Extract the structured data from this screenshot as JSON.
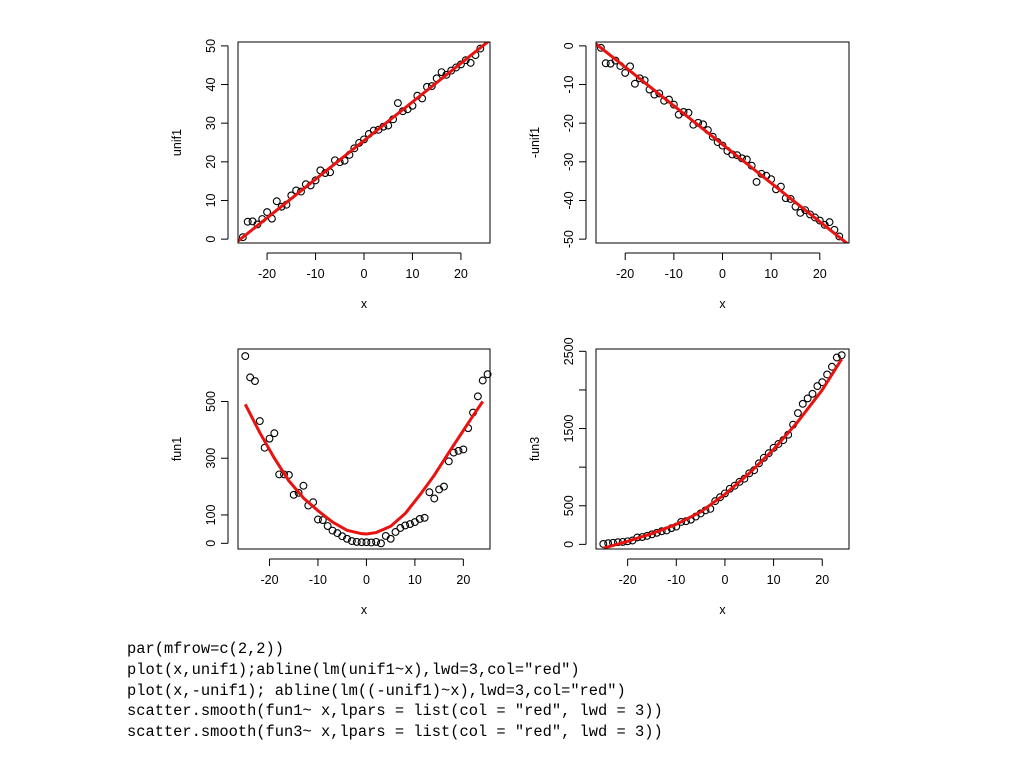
{
  "colors": {
    "points": "#000000",
    "fit_line": "#e8130f",
    "axes": "#000000"
  },
  "chart_data": [
    {
      "type": "scatter",
      "xlabel": "x",
      "ylabel": "unif1",
      "xlim": [
        -26,
        26
      ],
      "ylim": [
        -1,
        51
      ],
      "xticks": [
        -20,
        -10,
        0,
        10,
        20
      ],
      "yticks": [
        0,
        10,
        20,
        30,
        40,
        50
      ],
      "points": [
        [
          -25,
          0.5
        ],
        [
          -24,
          4.5
        ],
        [
          -23,
          4.6
        ],
        [
          -22,
          3.8
        ],
        [
          -21,
          5.2
        ],
        [
          -20,
          7.0
        ],
        [
          -19,
          5.3
        ],
        [
          -18,
          9.8
        ],
        [
          -17,
          8.4
        ],
        [
          -16,
          8.9
        ],
        [
          -15,
          11.3
        ],
        [
          -14,
          12.6
        ],
        [
          -13,
          12.3
        ],
        [
          -12,
          14.2
        ],
        [
          -11,
          13.9
        ],
        [
          -10,
          15.2
        ],
        [
          -9,
          17.8
        ],
        [
          -8,
          17.1
        ],
        [
          -7,
          17.3
        ],
        [
          -6,
          20.4
        ],
        [
          -5,
          19.9
        ],
        [
          -4,
          20.3
        ],
        [
          -3,
          21.8
        ],
        [
          -2,
          23.5
        ],
        [
          -1,
          24.9
        ],
        [
          0,
          25.8
        ],
        [
          1,
          27.2
        ],
        [
          2,
          28.1
        ],
        [
          3,
          28.3
        ],
        [
          4,
          29.1
        ],
        [
          5,
          29.4
        ],
        [
          6,
          31.0
        ],
        [
          7,
          35.2
        ],
        [
          8,
          33.1
        ],
        [
          9,
          33.6
        ],
        [
          10,
          34.5
        ],
        [
          11,
          37.1
        ],
        [
          12,
          36.4
        ],
        [
          13,
          39.4
        ],
        [
          14,
          39.6
        ],
        [
          15,
          41.6
        ],
        [
          16,
          43.2
        ],
        [
          17,
          42.5
        ],
        [
          18,
          43.6
        ],
        [
          19,
          44.4
        ],
        [
          20,
          45.2
        ],
        [
          21,
          46.3
        ],
        [
          22,
          45.6
        ],
        [
          23,
          47.6
        ],
        [
          24,
          49.3
        ]
      ],
      "fit": {
        "kind": "abline",
        "intercept": 25.5,
        "slope": 1.0,
        "lwd": 3
      }
    },
    {
      "type": "scatter",
      "xlabel": "x",
      "ylabel": "-unif1",
      "xlim": [
        -26,
        26
      ],
      "ylim": [
        -51,
        1
      ],
      "xticks": [
        -20,
        -10,
        0,
        10,
        20
      ],
      "yticks": [
        -50,
        -40,
        -30,
        -20,
        -10,
        0
      ],
      "points": [
        [
          -25,
          -0.5
        ],
        [
          -24,
          -4.5
        ],
        [
          -23,
          -4.6
        ],
        [
          -22,
          -3.8
        ],
        [
          -21,
          -5.2
        ],
        [
          -20,
          -7.0
        ],
        [
          -19,
          -5.3
        ],
        [
          -18,
          -9.8
        ],
        [
          -17,
          -8.4
        ],
        [
          -16,
          -8.9
        ],
        [
          -15,
          -11.3
        ],
        [
          -14,
          -12.6
        ],
        [
          -13,
          -12.3
        ],
        [
          -12,
          -14.2
        ],
        [
          -11,
          -13.9
        ],
        [
          -10,
          -15.2
        ],
        [
          -9,
          -17.8
        ],
        [
          -8,
          -17.1
        ],
        [
          -7,
          -17.3
        ],
        [
          -6,
          -20.4
        ],
        [
          -5,
          -19.9
        ],
        [
          -4,
          -20.3
        ],
        [
          -3,
          -21.8
        ],
        [
          -2,
          -23.5
        ],
        [
          -1,
          -24.9
        ],
        [
          0,
          -25.8
        ],
        [
          1,
          -27.2
        ],
        [
          2,
          -28.1
        ],
        [
          3,
          -28.3
        ],
        [
          4,
          -29.1
        ],
        [
          5,
          -29.4
        ],
        [
          6,
          -31.0
        ],
        [
          7,
          -35.2
        ],
        [
          8,
          -33.1
        ],
        [
          9,
          -33.6
        ],
        [
          10,
          -34.5
        ],
        [
          11,
          -37.1
        ],
        [
          12,
          -36.4
        ],
        [
          13,
          -39.4
        ],
        [
          14,
          -39.6
        ],
        [
          15,
          -41.6
        ],
        [
          16,
          -43.2
        ],
        [
          17,
          -42.5
        ],
        [
          18,
          -43.6
        ],
        [
          19,
          -44.4
        ],
        [
          20,
          -45.2
        ],
        [
          21,
          -46.3
        ],
        [
          22,
          -45.6
        ],
        [
          23,
          -47.6
        ],
        [
          24,
          -49.3
        ]
      ],
      "fit": {
        "kind": "abline",
        "intercept": -25.5,
        "slope": -1.0,
        "lwd": 3
      }
    },
    {
      "type": "scatter",
      "xlabel": "x",
      "ylabel": "fun1",
      "xlim": [
        -26.5,
        25.5
      ],
      "ylim": [
        -20,
        685
      ],
      "xticks": [
        -20,
        -10,
        0,
        10,
        20
      ],
      "yticks": [
        0,
        100,
        300,
        500
      ],
      "points": [
        [
          -25,
          660
        ],
        [
          -24,
          585
        ],
        [
          -23,
          572
        ],
        [
          -22,
          431
        ],
        [
          -21,
          337
        ],
        [
          -20,
          369
        ],
        [
          -19,
          388
        ],
        [
          -18,
          243
        ],
        [
          -17,
          243
        ],
        [
          -16,
          241
        ],
        [
          -15,
          171
        ],
        [
          -14,
          178
        ],
        [
          -13,
          203
        ],
        [
          -12,
          133
        ],
        [
          -11,
          145
        ],
        [
          -10,
          84
        ],
        [
          -9,
          82
        ],
        [
          -8,
          61
        ],
        [
          -7,
          45
        ],
        [
          -6,
          36
        ],
        [
          -5,
          25
        ],
        [
          -4,
          16
        ],
        [
          -3,
          8
        ],
        [
          -2,
          5
        ],
        [
          -1,
          4
        ],
        [
          0,
          4
        ],
        [
          1,
          3
        ],
        [
          2,
          5
        ],
        [
          3,
          0
        ],
        [
          4,
          26
        ],
        [
          5,
          16
        ],
        [
          6,
          40
        ],
        [
          7,
          54
        ],
        [
          8,
          63
        ],
        [
          9,
          68
        ],
        [
          10,
          75
        ],
        [
          11,
          86
        ],
        [
          12,
          90
        ],
        [
          13,
          180
        ],
        [
          14,
          158
        ],
        [
          15,
          190
        ],
        [
          16,
          200
        ],
        [
          17,
          289
        ],
        [
          18,
          320
        ],
        [
          19,
          326
        ],
        [
          20,
          331
        ],
        [
          21,
          406
        ],
        [
          22,
          461
        ],
        [
          23,
          518
        ],
        [
          24,
          574
        ],
        [
          25,
          596
        ]
      ],
      "fit": {
        "kind": "smooth",
        "x": [
          -25,
          -22,
          -19,
          -16,
          -13,
          -10,
          -7,
          -4,
          -1,
          0,
          2,
          5,
          8,
          11,
          14,
          17,
          20,
          22,
          24
        ],
        "y": [
          490,
          390,
          300,
          220,
          160,
          115,
          75,
          46,
          34,
          33,
          38,
          60,
          105,
          170,
          240,
          320,
          398,
          450,
          500
        ],
        "lwd": 3
      }
    },
    {
      "type": "scatter",
      "xlabel": "x",
      "ylabel": "fun3",
      "xlim": [
        -26.5,
        25.5
      ],
      "ylim": [
        -60,
        2530
      ],
      "xticks": [
        -20,
        -10,
        0,
        10,
        20
      ],
      "yticks": [
        0,
        500,
        1500,
        2500
      ],
      "yticks_minor": [
        1000,
        2000
      ],
      "points": [
        [
          -25,
          5
        ],
        [
          -24,
          15
        ],
        [
          -23,
          20
        ],
        [
          -22,
          28
        ],
        [
          -21,
          32
        ],
        [
          -20,
          40
        ],
        [
          -19,
          50
        ],
        [
          -18,
          90
        ],
        [
          -17,
          95
        ],
        [
          -16,
          110
        ],
        [
          -15,
          130
        ],
        [
          -14,
          150
        ],
        [
          -13,
          170
        ],
        [
          -12,
          180
        ],
        [
          -11,
          210
        ],
        [
          -10,
          230
        ],
        [
          -9,
          290
        ],
        [
          -8,
          300
        ],
        [
          -7,
          320
        ],
        [
          -6,
          360
        ],
        [
          -5,
          400
        ],
        [
          -4,
          440
        ],
        [
          -3,
          460
        ],
        [
          -2,
          560
        ],
        [
          -1,
          610
        ],
        [
          0,
          660
        ],
        [
          1,
          720
        ],
        [
          2,
          760
        ],
        [
          3,
          810
        ],
        [
          4,
          850
        ],
        [
          5,
          920
        ],
        [
          6,
          960
        ],
        [
          7,
          1050
        ],
        [
          8,
          1120
        ],
        [
          9,
          1180
        ],
        [
          10,
          1250
        ],
        [
          11,
          1300
        ],
        [
          12,
          1350
        ],
        [
          13,
          1420
        ],
        [
          14,
          1550
        ],
        [
          15,
          1700
        ],
        [
          16,
          1820
        ],
        [
          17,
          1890
        ],
        [
          18,
          1950
        ],
        [
          19,
          2050
        ],
        [
          20,
          2100
        ],
        [
          21,
          2200
        ],
        [
          22,
          2300
        ],
        [
          23,
          2420
        ],
        [
          24,
          2450
        ]
      ],
      "fit": {
        "kind": "smooth",
        "x": [
          -25,
          -20,
          -15,
          -10,
          -5,
          0,
          5,
          10,
          15,
          20,
          24
        ],
        "y": [
          -50,
          40,
          140,
          260,
          420,
          650,
          920,
          1230,
          1590,
          2000,
          2400
        ],
        "lwd": 3
      }
    }
  ],
  "code_lines": [
    "par(mfrow=c(2,2))",
    "plot(x,unif1);abline(lm(unif1~x),lwd=3,col=\"red\")",
    "plot(x,-unif1); abline(lm((-unif1)~x),lwd=3,col=\"red\")",
    "scatter.smooth(fun1~ x,lpars = list(col = \"red\", lwd = 3))",
    "scatter.smooth(fun3~ x,lpars = list(col = \"red\", lwd = 3))"
  ]
}
